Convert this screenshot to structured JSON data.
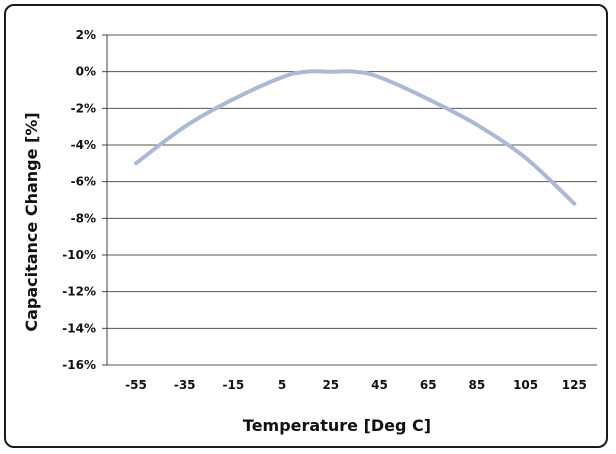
{
  "chart_data": {
    "type": "line",
    "title": "",
    "xlabel": "Temperature [Deg C]",
    "ylabel": "Capacitance Change [%]",
    "x": [
      -55,
      -35,
      -15,
      5,
      25,
      45,
      65,
      85,
      105,
      125
    ],
    "x_tick_labels": [
      "-55",
      "-35",
      "-15",
      "5",
      "25",
      "45",
      "65",
      "85",
      "105",
      "125"
    ],
    "y_tick_labels": [
      "2%",
      "0%",
      "-2%",
      "-4%",
      "-6%",
      "-8%",
      "-10%",
      "-12%",
      "-14%",
      "-16%"
    ],
    "ylim": [
      -16,
      2
    ],
    "y_unit": "%",
    "grid": "horizontal",
    "series": [
      {
        "color": "#a9b9d9",
        "x": [
          -55,
          -35,
          -15,
          5,
          15,
          25,
          35,
          45,
          65,
          85,
          105,
          125
        ],
        "y": [
          -5.0,
          -3.0,
          -1.5,
          -0.3,
          0.0,
          0.0,
          0.0,
          -0.3,
          -1.5,
          -2.9,
          -4.7,
          -7.2
        ]
      }
    ]
  }
}
